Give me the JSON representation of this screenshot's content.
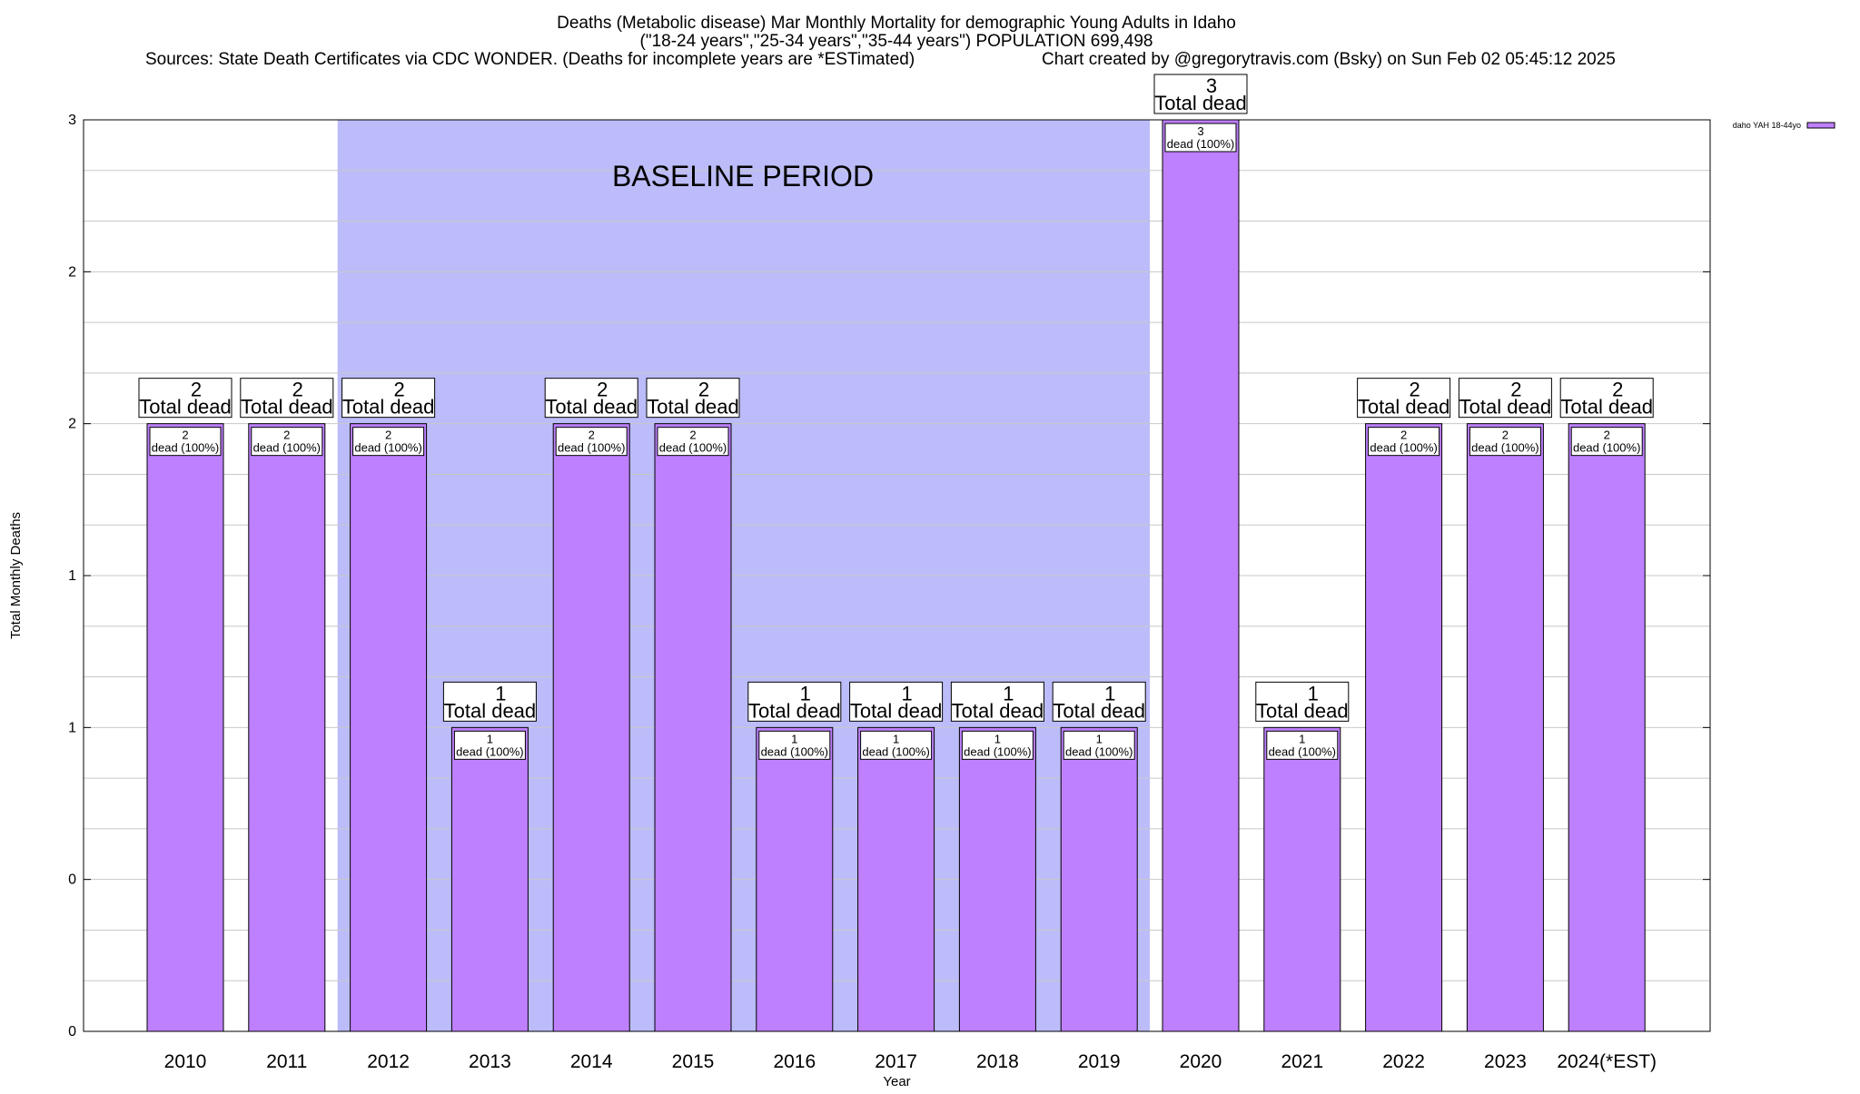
{
  "title": {
    "line1": "Deaths (Metabolic disease) Mar Monthly Mortality for demographic Young Adults in Idaho",
    "line2": "(\"18-24 years\",\"25-34 years\",\"35-44 years\") POPULATION 699,498",
    "line3_left": "Sources: State Death Certificates via CDC WONDER. (Deaths for incomplete years are *ESTimated)",
    "line3_right": "Chart created by @gregorytravis.com (Bsky) on Sun Feb 02 05:45:12 2025"
  },
  "colors": {
    "bar_fill": "#bf80ff",
    "baseline_shade": "#bcbcfa",
    "grid": "#c8c8c8",
    "label_box_bg": "#ffffff"
  },
  "chart_data": {
    "type": "bar",
    "xlabel": "Year",
    "ylabel": "Total Monthly Deaths",
    "ylim": [
      0,
      3
    ],
    "y_tick_values": [
      0,
      0.5,
      1,
      1.5,
      2,
      2.5,
      3
    ],
    "y_tick_labels": [
      "0",
      "0",
      "1",
      "1",
      "2",
      "2",
      "3"
    ],
    "grid": true,
    "categories": [
      "2010",
      "2011",
      "2012",
      "2013",
      "2014",
      "2015",
      "2016",
      "2017",
      "2018",
      "2019",
      "2020",
      "2021",
      "2022",
      "2023",
      "2024(*EST)"
    ],
    "series": [
      {
        "name": "daho YAH 18-44yo",
        "values": [
          2,
          2,
          2,
          1,
          2,
          2,
          1,
          1,
          1,
          1,
          3,
          1,
          2,
          2,
          2
        ]
      }
    ],
    "bar_total_label_suffix": "Total dead",
    "bar_inner_label_suffix": "dead (100%)",
    "annotations": [
      {
        "text": "BASELINE PERIOD",
        "from_category": "2012",
        "to_category": "2019"
      }
    ],
    "legend_position": "top-right"
  }
}
